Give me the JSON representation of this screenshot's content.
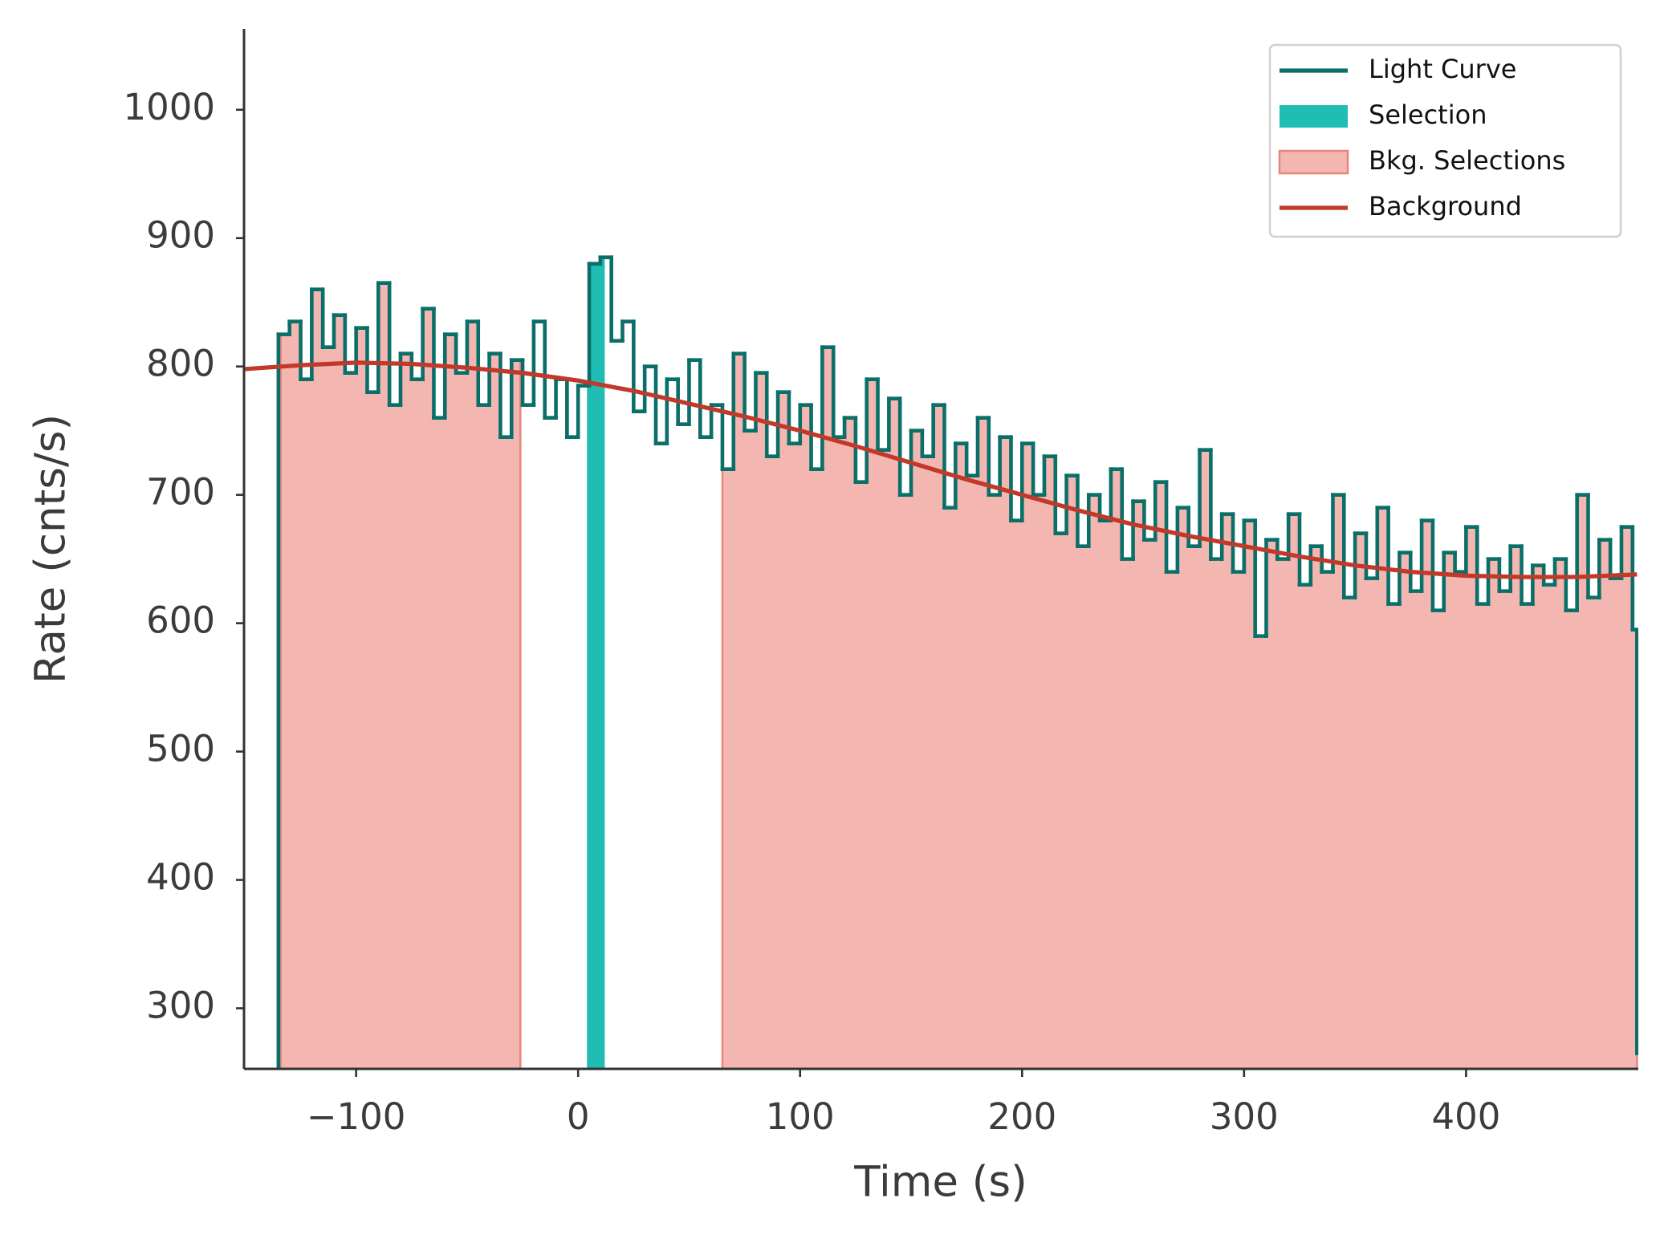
{
  "chart_data": {
    "type": "line",
    "xlabel": "Time (s)",
    "ylabel": "Rate (cnts/s)",
    "xlim": [
      -150.5,
      477.6
    ],
    "ylim": [
      252.8,
      1063
    ],
    "xticks": [
      {
        "value": -100,
        "label": "−100"
      },
      0,
      100,
      200,
      300,
      400
    ],
    "yticks": [
      300,
      400,
      500,
      600,
      700,
      800,
      900,
      1000
    ],
    "legend": "upper right",
    "series": [
      {
        "name": "Light Curve",
        "color": "#0a6f68",
        "style": "step",
        "x": [
          -138,
          -135,
          -130,
          -125,
          -120,
          -115,
          -110,
          -105,
          -100,
          -95,
          -90,
          -85,
          -80,
          -75,
          -70,
          -65,
          -60,
          -55,
          -50,
          -45,
          -40,
          -35,
          -30,
          -25,
          -20,
          -15,
          -10,
          -5,
          0,
          5,
          10,
          15,
          20,
          25,
          30,
          35,
          40,
          45,
          50,
          55,
          60,
          65,
          70,
          75,
          80,
          85,
          90,
          95,
          100,
          105,
          110,
          115,
          120,
          125,
          130,
          135,
          140,
          145,
          150,
          155,
          160,
          165,
          170,
          175,
          180,
          185,
          190,
          195,
          200,
          205,
          210,
          215,
          220,
          225,
          230,
          235,
          240,
          245,
          250,
          255,
          260,
          265,
          270,
          275,
          280,
          285,
          290,
          295,
          300,
          305,
          310,
          315,
          320,
          325,
          330,
          335,
          340,
          345,
          350,
          355,
          360,
          365,
          370,
          375,
          380,
          385,
          390,
          395,
          400,
          405,
          410,
          415,
          420,
          425,
          430,
          435,
          440,
          445,
          450,
          455,
          460,
          465,
          470,
          475,
          477
        ],
        "values": [
          252,
          825,
          835,
          790,
          860,
          815,
          840,
          795,
          830,
          780,
          865,
          770,
          810,
          790,
          845,
          760,
          825,
          795,
          835,
          770,
          810,
          745,
          805,
          770,
          835,
          760,
          790,
          745,
          785,
          880,
          885,
          820,
          835,
          765,
          800,
          740,
          790,
          755,
          805,
          745,
          770,
          720,
          810,
          750,
          795,
          730,
          780,
          740,
          770,
          720,
          815,
          745,
          760,
          710,
          790,
          735,
          775,
          700,
          750,
          730,
          770,
          690,
          740,
          715,
          760,
          700,
          745,
          680,
          740,
          700,
          730,
          670,
          715,
          660,
          700,
          680,
          720,
          650,
          695,
          665,
          710,
          640,
          690,
          660,
          735,
          650,
          685,
          640,
          680,
          590,
          665,
          650,
          685,
          630,
          660,
          640,
          700,
          620,
          670,
          635,
          690,
          615,
          655,
          625,
          680,
          610,
          655,
          640,
          675,
          615,
          650,
          625,
          660,
          615,
          645,
          630,
          650,
          610,
          700,
          620,
          665,
          635,
          675,
          595,
          265
        ]
      }
    ],
    "selection": {
      "name": "Selection",
      "color": "#20bdb5",
      "range": [
        4,
        12
      ]
    },
    "bkg_selections": {
      "name": "Bkg. Selections",
      "color": "#f4b6b1",
      "edge_color": "#e8847c",
      "ranges": [
        [
          -134,
          -26
        ],
        [
          65,
          477
        ]
      ]
    },
    "background": {
      "name": "Background",
      "color": "#c0392b",
      "x": [
        -150,
        -125,
        -100,
        -75,
        -50,
        -25,
        0,
        25,
        50,
        75,
        100,
        125,
        150,
        175,
        200,
        225,
        250,
        275,
        300,
        325,
        350,
        375,
        400,
        425,
        450,
        477
      ],
      "values": [
        798,
        801,
        803,
        802,
        799,
        795,
        789,
        781,
        771,
        761,
        750,
        738,
        725,
        712,
        700,
        688,
        677,
        668,
        660,
        652,
        645,
        640,
        637,
        636,
        636,
        638
      ]
    }
  }
}
